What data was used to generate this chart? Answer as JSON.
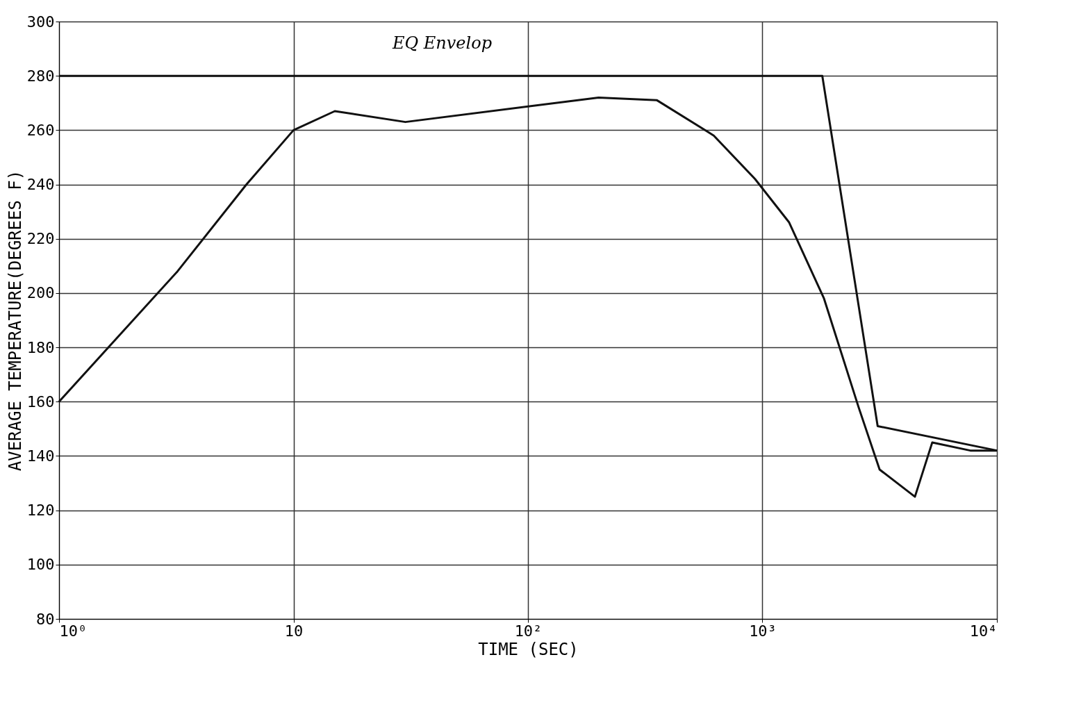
{
  "chart_data": {
    "type": "line",
    "xlabel": "TIME (SEC)",
    "ylabel": "AVERAGE TEMPERATURE(DEGREES F)",
    "log": "x",
    "grid": true,
    "marker": "none",
    "line_style": "solid",
    "xlim": [
      1,
      10000
    ],
    "xticks": [
      {
        "value": 1,
        "label": "10⁰"
      },
      {
        "value": 10,
        "label": "10"
      },
      {
        "value": 100,
        "label": "10²"
      },
      {
        "value": 1000,
        "label": "10³"
      },
      {
        "value": 10000,
        "label": "10⁴"
      }
    ],
    "ylim": [
      80,
      300
    ],
    "yticks": [
      80,
      100,
      120,
      140,
      160,
      180,
      200,
      220,
      240,
      260,
      280,
      300
    ],
    "series": [
      {
        "color": "#111111",
        "x": [
          1,
          1800,
          3100,
          10000
        ],
        "values": [
          280,
          280,
          151,
          142
        ]
      },
      {
        "color": "#111111",
        "x": [
          1,
          3.2,
          6.3,
          10,
          15,
          30,
          200,
          355,
          620,
          930,
          1300,
          1830,
          2570,
          3160,
          4470,
          5300,
          7700,
          10000
        ],
        "values": [
          160,
          208,
          240,
          260,
          267,
          263,
          272,
          271,
          258,
          242,
          226,
          198,
          158,
          135,
          125,
          145,
          142,
          142
        ]
      }
    ],
    "annotations": [
      "EQ Envelop"
    ]
  }
}
